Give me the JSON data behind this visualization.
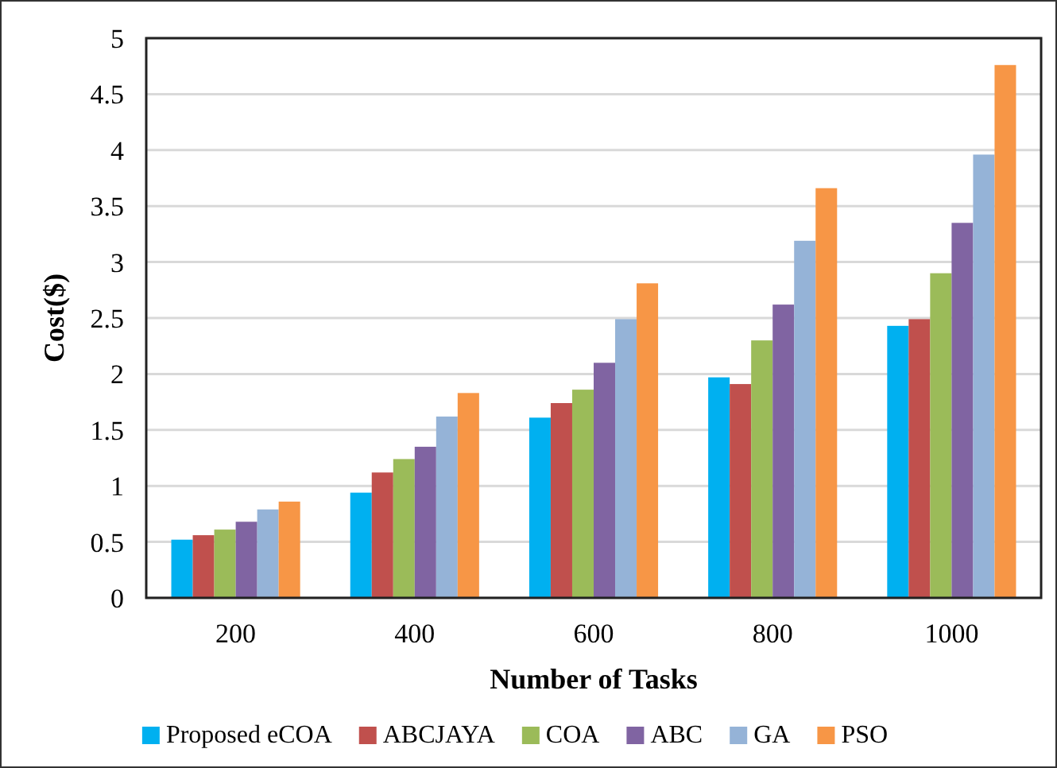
{
  "chart_data": {
    "type": "bar",
    "xlabel": "Number of Tasks",
    "ylabel": "Cost($)",
    "categories": [
      "200",
      "400",
      "600",
      "800",
      "1000"
    ],
    "series": [
      {
        "name": "Proposed eCOA",
        "color": "#00b0f0",
        "values": [
          0.52,
          0.94,
          1.61,
          1.97,
          2.43
        ]
      },
      {
        "name": "ABCJAYA",
        "color": "#c0504d",
        "values": [
          0.56,
          1.12,
          1.74,
          1.91,
          2.49
        ]
      },
      {
        "name": "COA",
        "color": "#9bbb59",
        "values": [
          0.61,
          1.24,
          1.86,
          2.3,
          2.9
        ]
      },
      {
        "name": "ABC",
        "color": "#8064a2",
        "values": [
          0.68,
          1.35,
          2.1,
          2.62,
          3.35
        ]
      },
      {
        "name": "GA",
        "color": "#95b3d7",
        "values": [
          0.79,
          1.62,
          2.49,
          3.19,
          3.96
        ]
      },
      {
        "name": "PSO",
        "color": "#f79646",
        "values": [
          0.86,
          1.83,
          2.81,
          3.66,
          4.76
        ]
      }
    ],
    "ylim": [
      0,
      5
    ],
    "yticks": [
      0,
      0.5,
      1,
      1.5,
      2,
      2.5,
      3,
      3.5,
      4,
      4.5,
      5
    ],
    "grid": "y",
    "legend": "bottom"
  }
}
